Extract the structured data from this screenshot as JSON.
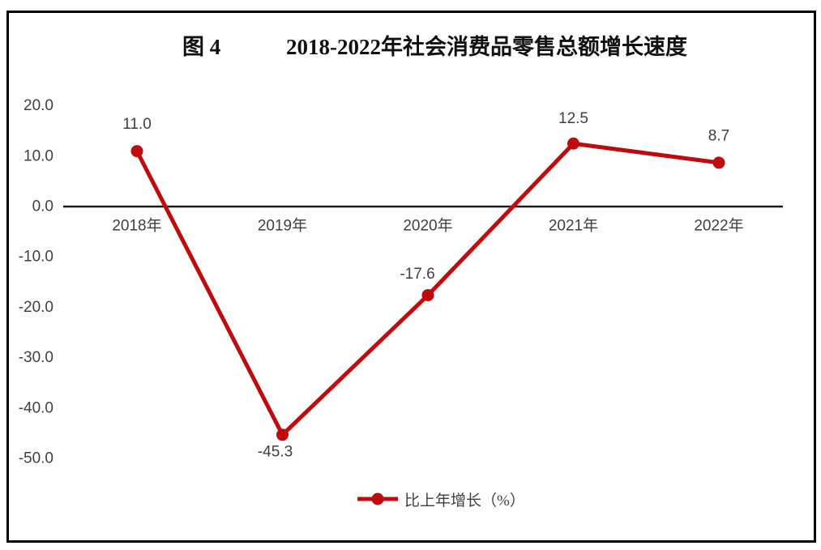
{
  "figure": {
    "number_label": "图 4",
    "title": "2018-2022年社会消费品零售总额增长速度"
  },
  "legend": {
    "label": "比上年增长（%）"
  },
  "colors": {
    "line": "#c00b0e",
    "marker": "#c00b0e",
    "axis_line": "#1a1a1a",
    "label_text": "#3f3f3f",
    "title_text": "#111111",
    "frame_border": "#000000",
    "background": "#ffffff"
  },
  "chart_data": {
    "type": "line",
    "title": "图 4 2018-2022年社会消费品零售总额增长速度",
    "categories": [
      "2018年",
      "2019年",
      "2020年",
      "2021年",
      "2022年"
    ],
    "series": [
      {
        "name": "比上年增长（%）",
        "values": [
          11.0,
          -45.3,
          -17.6,
          12.5,
          8.7
        ],
        "data_labels": [
          "11.0",
          "-45.3",
          "-17.6",
          "12.5",
          "8.7"
        ],
        "color": "#c00b0e"
      }
    ],
    "ylim": [
      -50.0,
      20.0
    ],
    "ytick_values": [
      20.0,
      10.0,
      0.0,
      -10.0,
      -20.0,
      -30.0,
      -40.0,
      -50.0
    ],
    "ytick_labels": [
      "20.0",
      "10.0",
      "0.0",
      "-10.0",
      "-20.0",
      "-30.0",
      "-40.0",
      "-50.0"
    ],
    "xlabel": "",
    "ylabel": "",
    "grid": false,
    "legend_position": "bottom-center",
    "baseline_axis": 0
  }
}
